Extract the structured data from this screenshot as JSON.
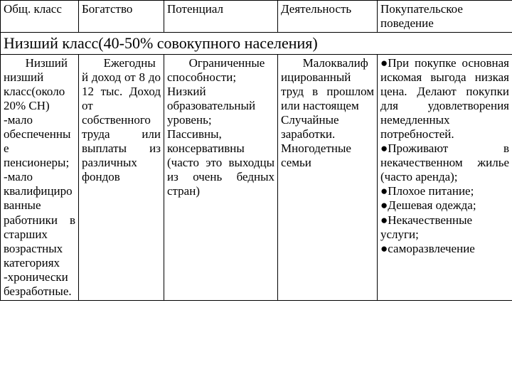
{
  "headers": {
    "col1": "Общ. класс",
    "col2": "Богатство",
    "col3": "Потенциал",
    "col4": "Деятельность",
    "col5": "Покупательское поведение"
  },
  "section_title": "Низший класс(40-50% совокупного населения)",
  "row": {
    "class_desc": "Низший низший класс(около 20% СН)\n    -мало обеспеченные пенсионеры;\n    -мало квалифицированные работники в старших возрастных категориях\n    -хронически безработные.",
    "wealth": "Ежегодный доход от 8 до 12 тыс. Доход от собственного труда или выплаты из различных фондов",
    "potential": "Ограниченные способности;\n    Низкий образовательный уровень;\n    Пассивны, консервативны (часто это выходцы из очень бедных стран)",
    "activity": "Малоквалифицированный труд в прошлом или настоящем\n    Случайные заработки.\n    Многодетные семьи",
    "behavior": {
      "b1": "При покупке основная искомая выгода низкая цена. Делают покупки для удовлетворения немедленных потребностей.",
      "b2": "Проживают в некачественном жилье (часто аренда);",
      "b3": "Плохое питание;",
      "b4": "Дешевая одежда;",
      "b5": "Некачественные услуги;",
      "b6": "саморазвлечение"
    }
  }
}
